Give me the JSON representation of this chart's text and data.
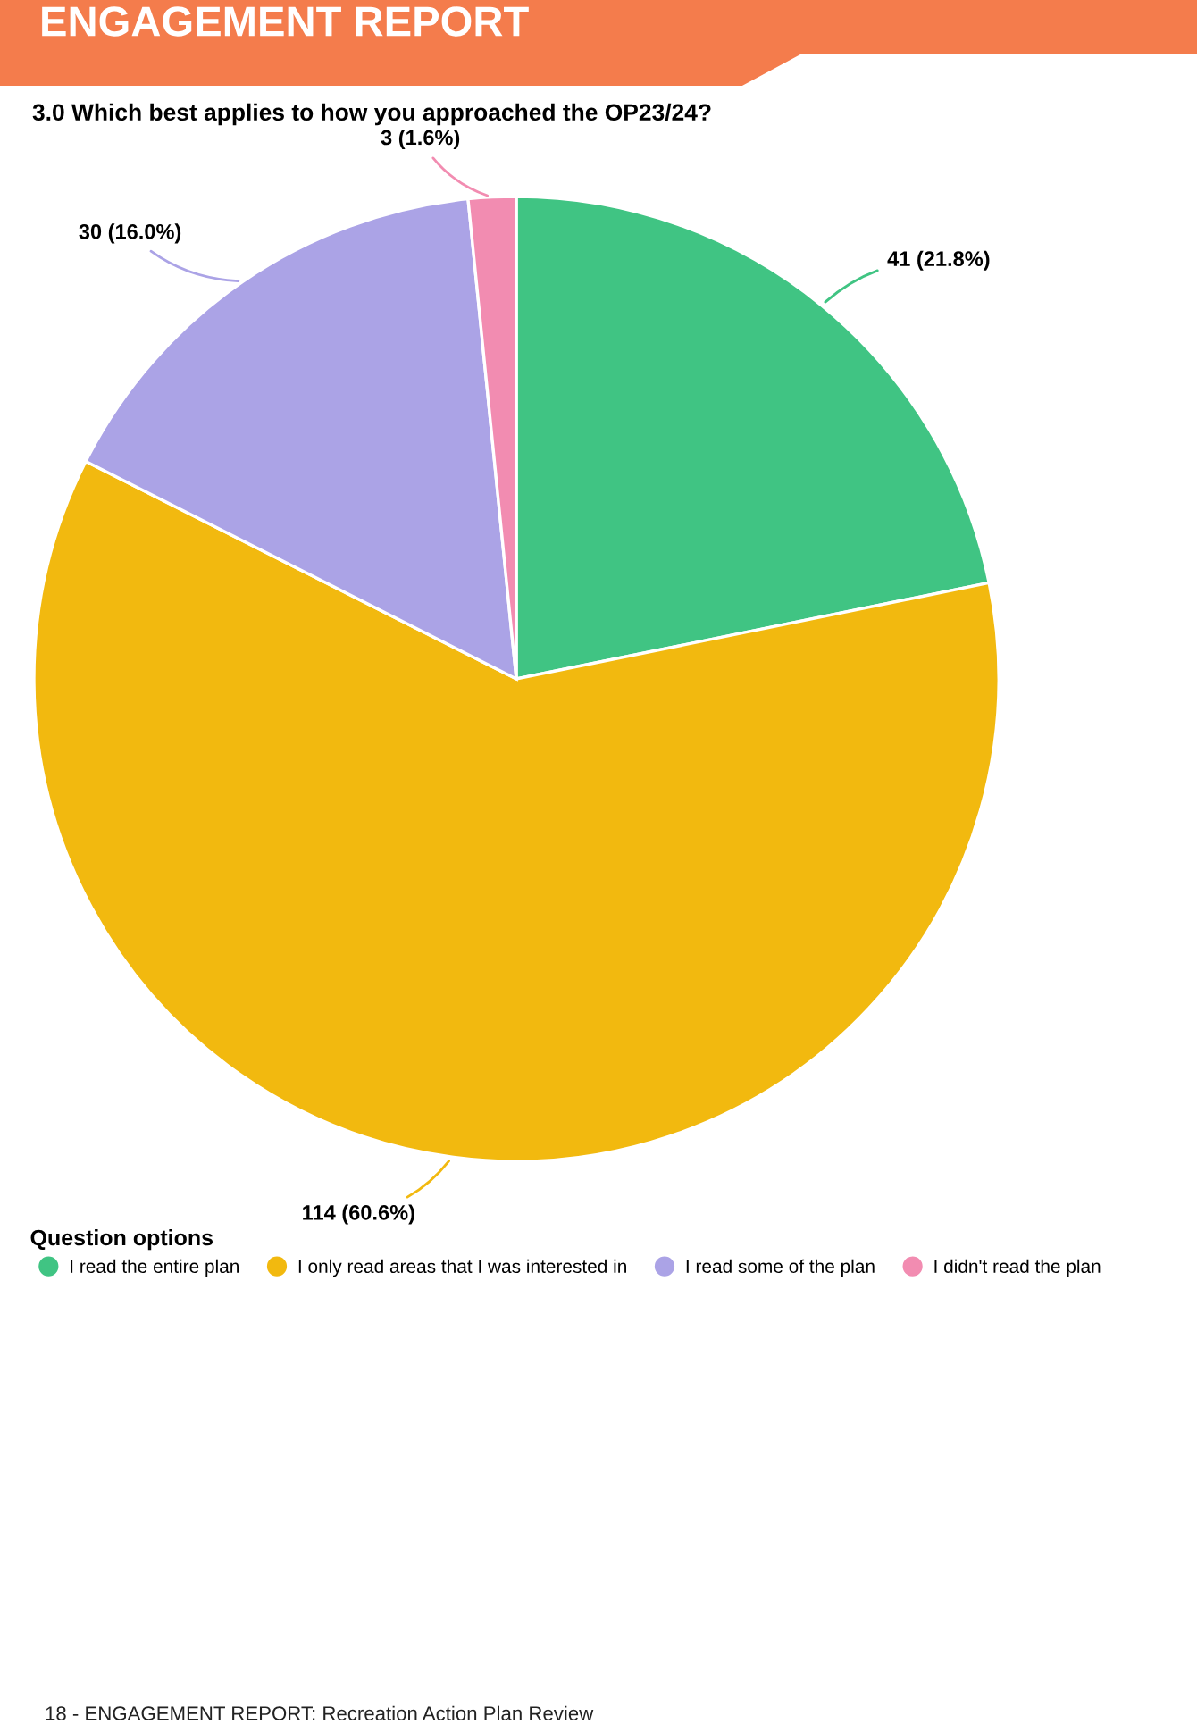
{
  "chart_data": {
    "type": "pie",
    "title": "3.0 Which best applies to how you approached the OP23/24?",
    "legend_title": "Question options",
    "categories": [
      "I read the entire plan",
      "I only read areas that I was interested in",
      "I read some of the plan",
      "I didn't read the plan"
    ],
    "values": [
      41,
      114,
      30,
      3
    ],
    "colors": [
      "#40c483",
      "#f2b90f",
      "#aba3e6",
      "#f28cb1"
    ],
    "value_labels": [
      "41 (21.8%)",
      "114 (60.6%)",
      "30 (16.0%)",
      "3 (1.6%)"
    ],
    "legend": "bottom",
    "annotations": [
      "ENGAGEMENT REPORT",
      "18 - ENGAGEMENT REPORT: Recreation Action Plan Review"
    ]
  }
}
